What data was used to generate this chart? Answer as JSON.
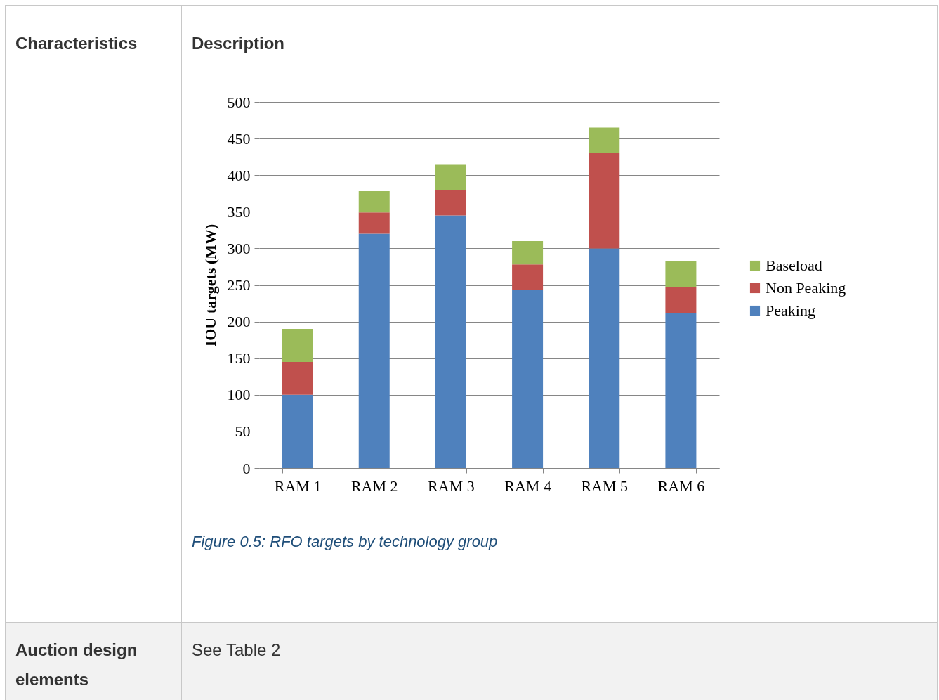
{
  "chart_data": {
    "type": "bar",
    "stacked": true,
    "ylabel": "IOU targets (MW)",
    "categories": [
      "RAM 1",
      "RAM 2",
      "RAM 3",
      "RAM 4",
      "RAM 5",
      "RAM 6"
    ],
    "series": [
      {
        "name": "Peaking",
        "color": "#4f81bd",
        "values": [
          100,
          320,
          345,
          243,
          300,
          212
        ]
      },
      {
        "name": "Non Peaking",
        "color": "#c0504d",
        "values": [
          45,
          29,
          34,
          35,
          131,
          35
        ]
      },
      {
        "name": "Baseload",
        "color": "#9bbb59",
        "values": [
          45,
          29,
          35,
          32,
          34,
          36
        ]
      }
    ],
    "ylim": [
      0,
      500
    ],
    "yticks": [
      0,
      50,
      100,
      150,
      200,
      250,
      300,
      350,
      400,
      450,
      500
    ],
    "grid": "y",
    "legend": "right",
    "annotations": [
      "Characteristics",
      "Description",
      "Figure 0.5: RFO targets by technology group",
      "Auction design elements",
      "See Table 2"
    ]
  }
}
